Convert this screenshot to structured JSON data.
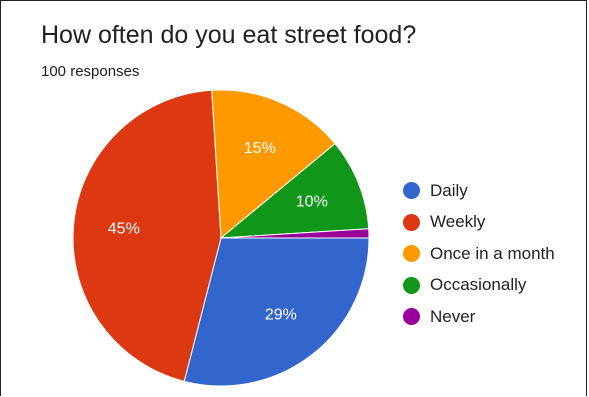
{
  "chart_data": {
    "type": "pie",
    "title": "How often do you eat street food?",
    "subtitle": "100 responses",
    "categories": [
      "Daily",
      "Weekly",
      "Once in a month",
      "Occasionally",
      "Never"
    ],
    "values": [
      29,
      45,
      15,
      10,
      1
    ],
    "data_labels": [
      "29%",
      "45%",
      "15%",
      "10%",
      ""
    ],
    "colors": [
      "#3366cc",
      "#dc3912",
      "#ff9900",
      "#109618",
      "#990099"
    ],
    "start_direction": "3 o'clock, clockwise",
    "legend_position": "right"
  }
}
